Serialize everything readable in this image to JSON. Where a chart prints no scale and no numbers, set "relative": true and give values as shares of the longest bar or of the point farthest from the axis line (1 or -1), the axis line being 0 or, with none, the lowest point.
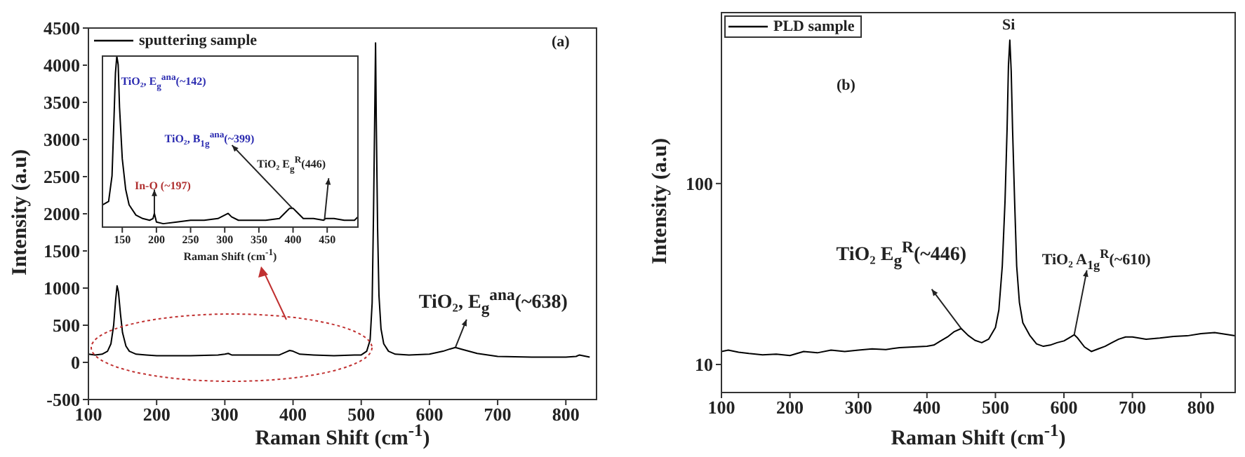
{
  "chart_data": [
    {
      "type": "line",
      "xlabel": "Raman Shift (cm$^{-1}$)",
      "ylabel": "Intensity (a.u)",
      "x": [
        100,
        110,
        120,
        128,
        133,
        137,
        140,
        142,
        144,
        147,
        150,
        155,
        160,
        170,
        185,
        200,
        250,
        290,
        300,
        305,
        310,
        320,
        350,
        380,
        390,
        395,
        400,
        410,
        430,
        460,
        490,
        500,
        508,
        513,
        516,
        518,
        520,
        521,
        522,
        524,
        526,
        529,
        533,
        540,
        550,
        570,
        600,
        620,
        630,
        638,
        650,
        670,
        700,
        750,
        800,
        815,
        820,
        825,
        835
      ],
      "series": [
        {
          "name": "sputtering sample",
          "color": "#000000",
          "values": [
            110,
            100,
            110,
            150,
            250,
            500,
            850,
            1030,
            950,
            650,
            400,
            220,
            150,
            110,
            100,
            90,
            90,
            100,
            110,
            120,
            100,
            100,
            100,
            100,
            140,
            160,
            150,
            110,
            100,
            90,
            100,
            100,
            150,
            300,
            800,
            2000,
            3500,
            4300,
            3300,
            1800,
            900,
            450,
            250,
            150,
            110,
            100,
            110,
            150,
            180,
            200,
            170,
            120,
            80,
            70,
            70,
            80,
            100,
            90,
            70
          ]
        }
      ],
      "xlim": [
        100,
        845
      ],
      "xticks": [
        100,
        200,
        300,
        400,
        500,
        600,
        700,
        800
      ],
      "ylim": [
        -500,
        4500
      ],
      "yticks": [
        -500,
        0,
        500,
        1000,
        1500,
        2000,
        2500,
        3000,
        3500,
        4000,
        4500
      ],
      "legend": "top left",
      "marker": "none",
      "annotations": [
        "(a)",
        {
          "text": "TiO₂, E$_{g}$$^{ana}$(~638)",
          "x": 638,
          "y": 200
        }
      ]
    },
    {
      "type": "line",
      "relative": true,
      "xlabel": "Raman Shift (cm$^{-1}$)",
      "x": [
        121,
        130,
        135,
        138,
        140,
        142,
        144,
        146,
        150,
        155,
        160,
        170,
        180,
        190,
        195,
        197,
        200,
        210,
        230,
        250,
        270,
        290,
        300,
        305,
        310,
        320,
        340,
        360,
        380,
        390,
        395,
        400,
        405,
        415,
        430,
        445,
        447,
        460,
        475,
        490,
        495
      ],
      "series": [
        {
          "color": "#000000",
          "values": [
            0.13,
            0.15,
            0.3,
            0.65,
            0.9,
            1,
            0.95,
            0.7,
            0.4,
            0.22,
            0.13,
            0.07,
            0.05,
            0.04,
            0.05,
            0.08,
            0.03,
            0.02,
            0.03,
            0.04,
            0.04,
            0.05,
            0.07,
            0.08,
            0.06,
            0.04,
            0.04,
            0.04,
            0.05,
            0.09,
            0.11,
            0.11,
            0.09,
            0.05,
            0.05,
            0.04,
            0.05,
            0.05,
            0.04,
            0.04,
            0.06
          ]
        }
      ],
      "xlim": [
        121,
        495
      ],
      "xticks": [
        150,
        200,
        250,
        300,
        350,
        400,
        450
      ],
      "tick_labels": "x",
      "marker": "none",
      "annotations": [
        {
          "text": "TiO₂, E$_{g}$$^{ana}$(~142)",
          "x": 142,
          "y": 1
        },
        {
          "text": "In-O (~197)",
          "x": 197,
          "y": 0.08
        },
        {
          "text": "TiO₂, B$_{1g}$$^{ana}$(~399)",
          "x": 399,
          "y": 0.11
        },
        {
          "text": "TiO₂ E$_{g}$$^{R}$(446)",
          "x": 446,
          "y": 0.04
        }
      ]
    },
    {
      "type": "line",
      "log": true,
      "xlabel": "Raman Shift (cm$^{-1}$)",
      "ylabel": "Intensity (a.u)",
      "x": [
        100,
        110,
        125,
        140,
        160,
        180,
        200,
        220,
        240,
        260,
        280,
        300,
        320,
        340,
        360,
        380,
        400,
        410,
        420,
        430,
        440,
        450,
        460,
        470,
        480,
        490,
        500,
        505,
        510,
        514,
        517,
        519,
        521,
        523,
        525,
        528,
        531,
        535,
        540,
        550,
        560,
        570,
        580,
        590,
        600,
        610,
        615,
        620,
        630,
        640,
        650,
        660,
        670,
        680,
        690,
        700,
        720,
        740,
        760,
        780,
        800,
        820,
        840,
        850
      ],
      "series": [
        {
          "name": "PLD sample",
          "color": "#000000",
          "values": [
            11.8,
            12,
            11.7,
            11.5,
            11.3,
            11.4,
            11.2,
            11.8,
            11.6,
            12,
            11.8,
            12,
            12.2,
            12.1,
            12.4,
            12.5,
            12.6,
            12.8,
            13.5,
            14.2,
            15.2,
            15.8,
            14.5,
            13.6,
            13.2,
            13.8,
            16,
            20,
            35,
            80,
            200,
            450,
            620,
            420,
            200,
            80,
            35,
            22,
            17,
            14.5,
            13,
            12.6,
            12.8,
            13.2,
            13.5,
            14.2,
            14.6,
            14,
            12.5,
            11.8,
            12.2,
            12.6,
            13.2,
            13.8,
            14.2,
            14.2,
            13.8,
            14,
            14.3,
            14.4,
            14.8,
            15,
            14.6,
            14.4
          ]
        }
      ],
      "xlim": [
        100,
        850
      ],
      "xticks": [
        100,
        200,
        300,
        400,
        500,
        600,
        700,
        800
      ],
      "ylim": [
        7,
        880
      ],
      "yticks": [
        10,
        100
      ],
      "legend": "top left",
      "marker": "none",
      "annotations": [
        "Si",
        "(b)",
        {
          "text": "TiO₂ E$_{g}$$^{R}$(~446)",
          "x": 450,
          "y": 15.8
        },
        {
          "text": "TiO₂ A$_{1g}$$^{R}$(~610)",
          "x": 615,
          "y": 14.6
        }
      ]
    }
  ]
}
